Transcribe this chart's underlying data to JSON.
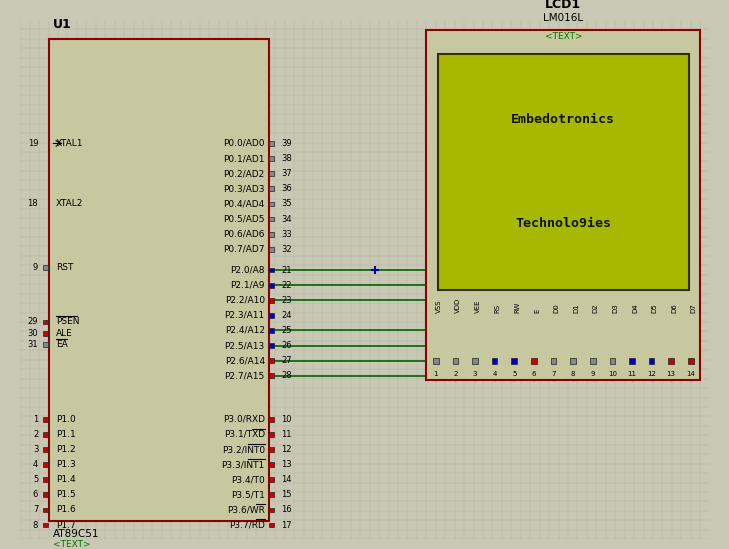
{
  "bg_color": "#c8c8b4",
  "grid_color": "#b4b4a0",
  "mcu_fill": "#c8c8a0",
  "mcu_edge": "#8b0000",
  "mcu_label": "U1",
  "mcu_sublabel": "AT89C51",
  "mcu_subtext": "<TEXT>",
  "lcd_fill": "#c8c8a0",
  "lcd_edge": "#8b0000",
  "lcd_label": "LCD1",
  "lcd_model": "LM016L",
  "lcd_subtext": "<TEXT>",
  "lcd_screen_fill": "#a8b800",
  "lcd_screen_edge": "#303010",
  "lcd_text1": "Embedotronics",
  "lcd_text2": "Technolo9ies",
  "lcd_text_color": "#101000",
  "wire_color": "#006400",
  "pin_color_red": "#cc0000",
  "pin_color_blue": "#0000cc",
  "pin_color_gray": "#888888"
}
